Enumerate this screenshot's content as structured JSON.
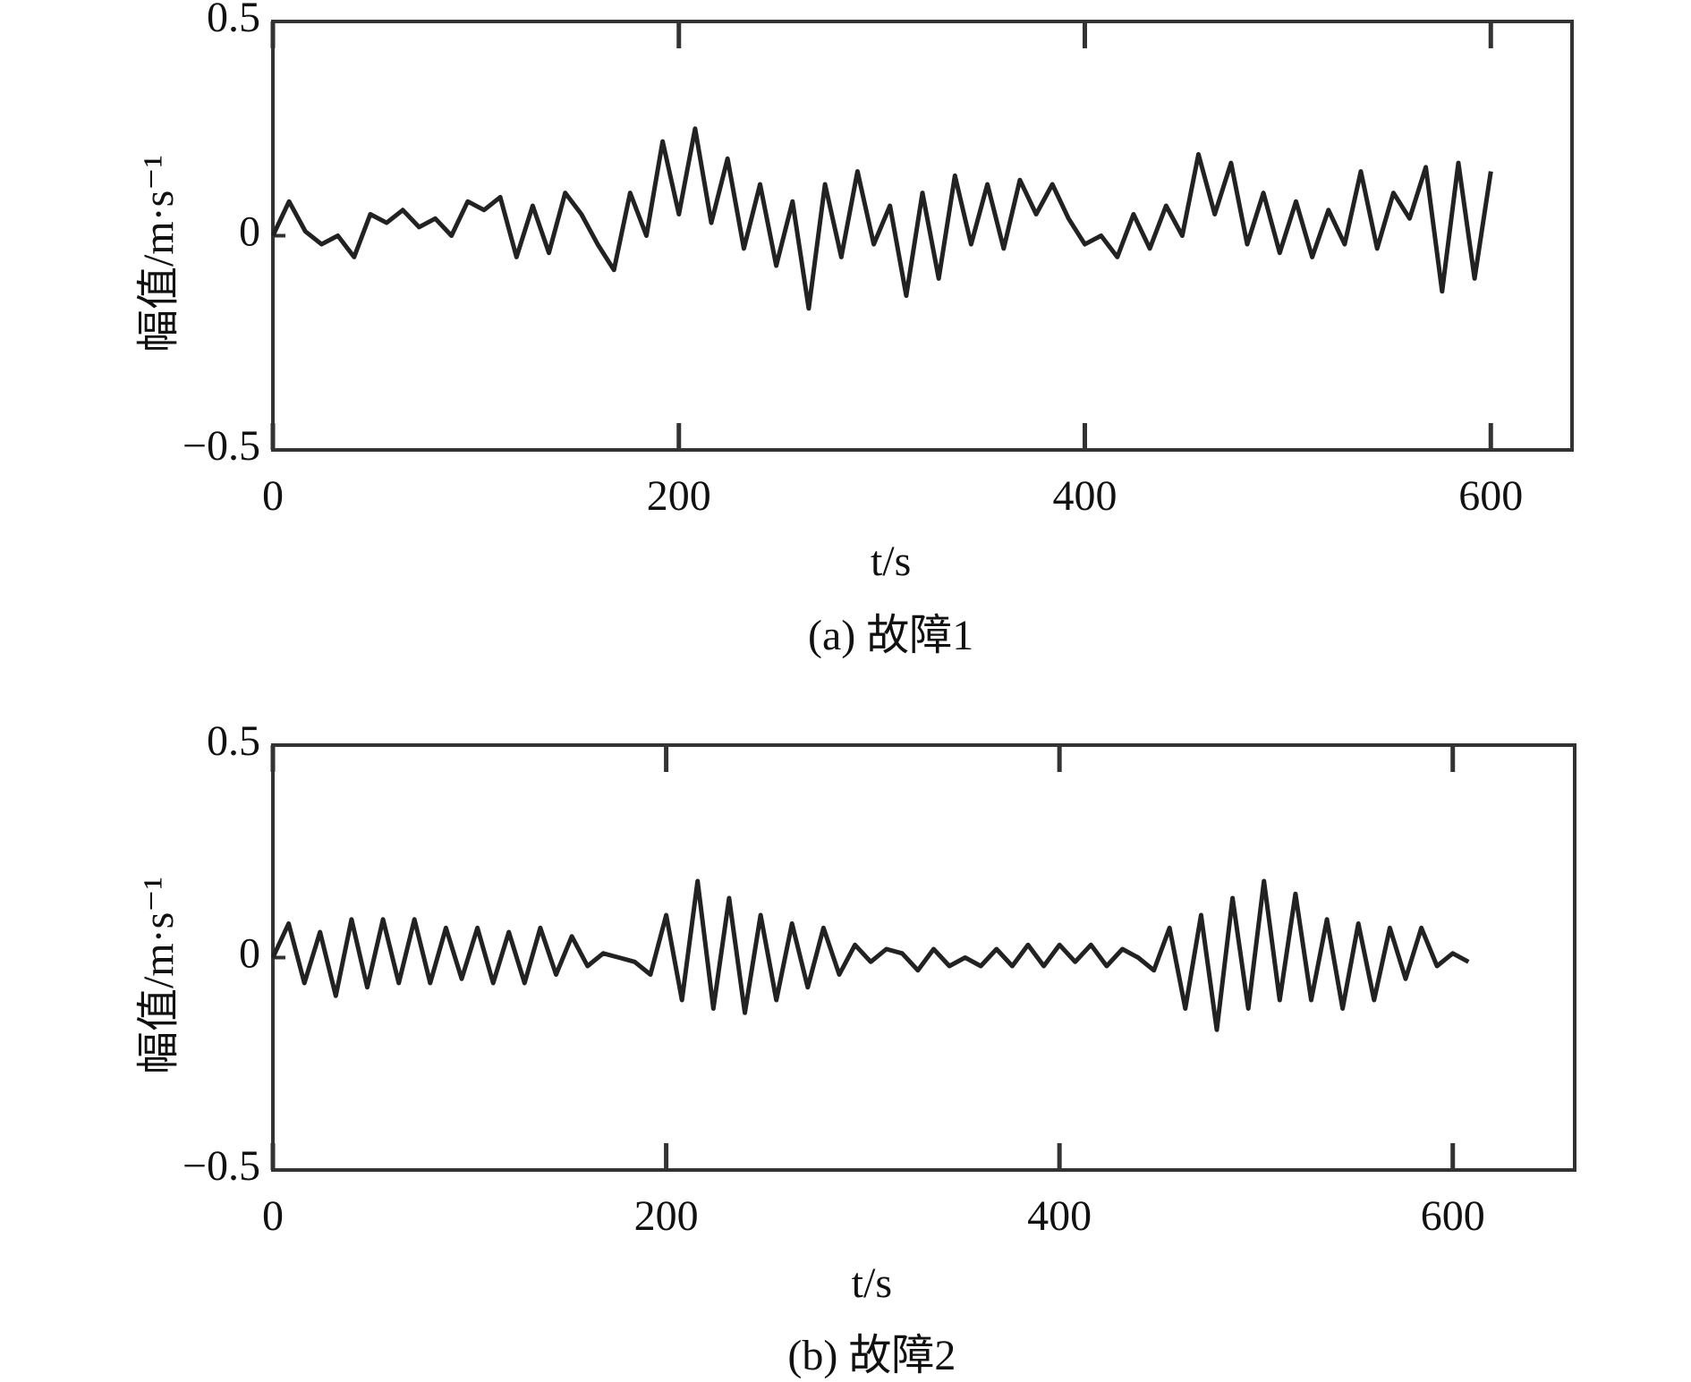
{
  "chart_data": [
    {
      "type": "line",
      "ylabel": "幅值/m·s⁻¹",
      "xlabel": "t/s",
      "caption": "(a) 故障1",
      "color": "#222222",
      "x": [
        0,
        8,
        16,
        24,
        32,
        40,
        48,
        56,
        64,
        72,
        80,
        88,
        96,
        104,
        112,
        120,
        128,
        136,
        144,
        152,
        160,
        168,
        176,
        184,
        192,
        200,
        208,
        216,
        224,
        232,
        240,
        248,
        256,
        264,
        272,
        280,
        288,
        296,
        304,
        312,
        320,
        328,
        336,
        344,
        352,
        360,
        368,
        376,
        384,
        392,
        400,
        408,
        416,
        424,
        432,
        440,
        448,
        456,
        464,
        472,
        480,
        488,
        496,
        504,
        512,
        520,
        528,
        536,
        544,
        552,
        560,
        568,
        576,
        584,
        592,
        600
      ],
      "values": [
        0,
        0.08,
        0.01,
        -0.02,
        0,
        -0.05,
        0.05,
        0.03,
        0.06,
        0.02,
        0.04,
        0,
        0.08,
        0.06,
        0.09,
        -0.05,
        0.07,
        -0.04,
        0.1,
        0.05,
        -0.02,
        -0.08,
        0.1,
        0,
        0.22,
        0.05,
        0.25,
        0.03,
        0.18,
        -0.03,
        0.12,
        -0.07,
        0.08,
        -0.17,
        0.12,
        -0.05,
        0.15,
        -0.02,
        0.07,
        -0.14,
        0.1,
        -0.1,
        0.14,
        -0.02,
        0.12,
        -0.03,
        0.13,
        0.05,
        0.12,
        0.04,
        -0.02,
        0,
        -0.05,
        0.05,
        -0.03,
        0.07,
        0,
        0.19,
        0.05,
        0.17,
        -0.02,
        0.1,
        -0.04,
        0.08,
        -0.05,
        0.06,
        -0.02,
        0.15,
        -0.03,
        0.1,
        0.04,
        0.16,
        -0.13,
        0.17,
        -0.1,
        0.15
      ],
      "xlim": [
        0,
        640
      ],
      "ylim": [
        -0.5,
        0.5
      ],
      "xticks": [
        0,
        200,
        400,
        600
      ],
      "yticks": [
        {
          "value": -0.5,
          "label": "−0.5"
        },
        0,
        0.5
      ]
    },
    {
      "type": "line",
      "ylabel": "幅值/m·s⁻¹",
      "xlabel": "t/s",
      "caption": "(b) 故障2",
      "color": "#222222",
      "x": [
        0,
        8,
        16,
        24,
        32,
        40,
        48,
        56,
        64,
        72,
        80,
        88,
        96,
        104,
        112,
        120,
        128,
        136,
        144,
        152,
        160,
        168,
        176,
        184,
        192,
        200,
        208,
        216,
        224,
        232,
        240,
        248,
        256,
        264,
        272,
        280,
        288,
        296,
        304,
        312,
        320,
        328,
        336,
        344,
        352,
        360,
        368,
        376,
        384,
        392,
        400,
        408,
        416,
        424,
        432,
        440,
        448,
        456,
        464,
        472,
        480,
        488,
        496,
        504,
        512,
        520,
        528,
        536,
        544,
        552,
        560,
        568,
        576,
        584,
        592,
        600,
        608
      ],
      "values": [
        0,
        0.08,
        -0.06,
        0.06,
        -0.09,
        0.09,
        -0.07,
        0.09,
        -0.06,
        0.09,
        -0.06,
        0.07,
        -0.05,
        0.07,
        -0.06,
        0.06,
        -0.06,
        0.07,
        -0.04,
        0.05,
        -0.02,
        0.01,
        0,
        -0.01,
        -0.04,
        0.1,
        -0.1,
        0.18,
        -0.12,
        0.14,
        -0.13,
        0.1,
        -0.1,
        0.08,
        -0.07,
        0.07,
        -0.04,
        0.03,
        -0.01,
        0.02,
        0.01,
        -0.03,
        0.02,
        -0.02,
        0,
        -0.02,
        0.02,
        -0.02,
        0.03,
        -0.02,
        0.03,
        -0.01,
        0.03,
        -0.02,
        0.02,
        0,
        -0.03,
        0.07,
        -0.12,
        0.1,
        -0.17,
        0.14,
        -0.12,
        0.18,
        -0.1,
        0.15,
        -0.1,
        0.09,
        -0.12,
        0.08,
        -0.1,
        0.07,
        -0.05,
        0.07,
        -0.02,
        0.01,
        -0.01
      ],
      "xlim": [
        0,
        662
      ],
      "ylim": [
        -0.5,
        0.5
      ],
      "xticks": [
        0,
        200,
        400,
        600
      ],
      "yticks": [
        {
          "value": -0.5,
          "label": "−0.5"
        },
        0,
        0.5
      ]
    }
  ]
}
